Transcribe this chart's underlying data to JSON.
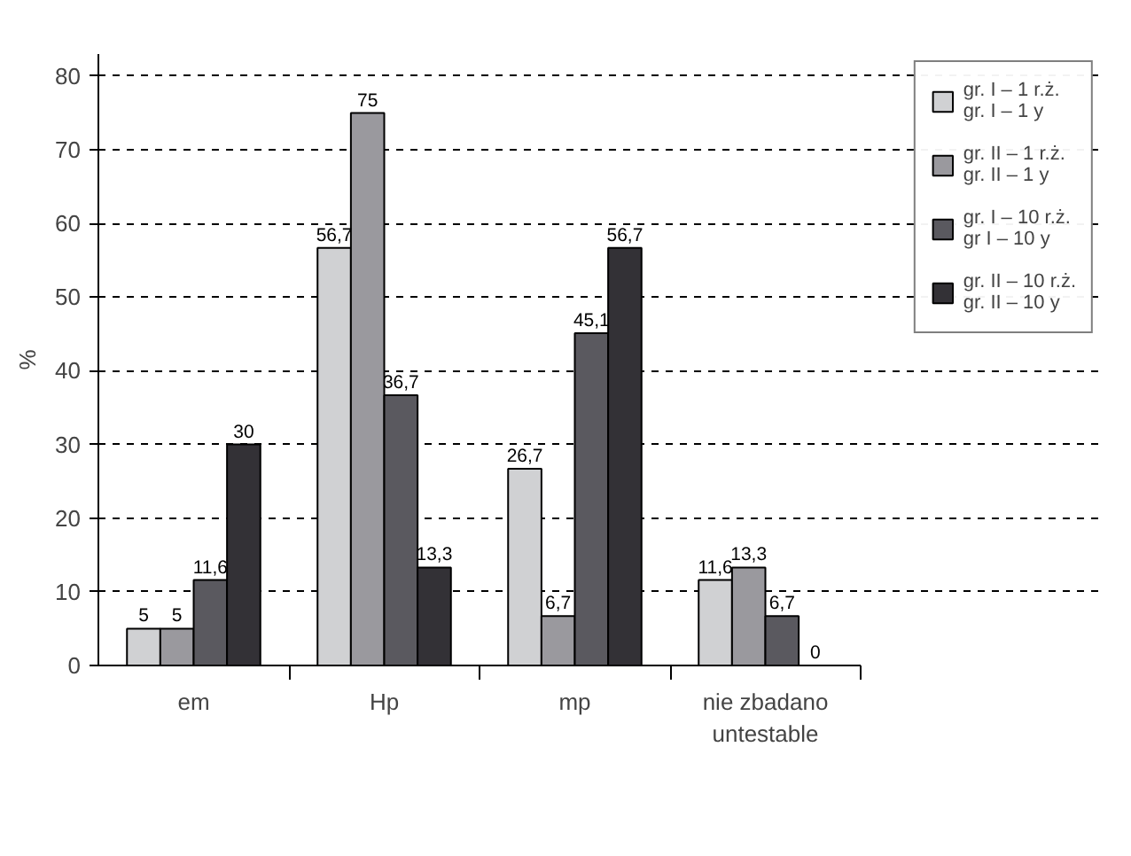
{
  "chart_data": {
    "type": "bar",
    "ylabel": "%",
    "categories": [
      "em",
      "Hp",
      "mp",
      "nie zbadano\nuntestable"
    ],
    "series": [
      {
        "name": "gr. I – 1 r.ż.\ngr. I – 1 y",
        "color": "#d0d1d3",
        "values": [
          5,
          56.7,
          26.7,
          11.6
        ],
        "value_labels": [
          "5",
          "56,7",
          "26,7",
          "11,6"
        ]
      },
      {
        "name": "gr. II – 1 r.ż.\ngr. II – 1 y",
        "color": "#9a999e",
        "values": [
          5,
          75,
          6.7,
          13.3
        ],
        "value_labels": [
          "5",
          "75",
          "6,7",
          "13,3"
        ]
      },
      {
        "name": "gr. I – 10 r.ż.\ngr I – 10 y",
        "color": "#5a595f",
        "values": [
          11.6,
          36.7,
          45.1,
          6.7
        ],
        "value_labels": [
          "11,6",
          "36,7",
          "45,1",
          "6,7"
        ]
      },
      {
        "name": "gr. II – 10 r.ż.\ngr. II – 10 y",
        "color": "#333136",
        "values": [
          30,
          13.3,
          56.7,
          0
        ],
        "value_labels": [
          "30",
          "13,3",
          "56,7",
          "0"
        ]
      }
    ],
    "ylim": [
      0,
      83
    ],
    "yticks": [
      0,
      10,
      20,
      30,
      40,
      50,
      60,
      70,
      80
    ],
    "grid": "y",
    "legend": "top right"
  }
}
